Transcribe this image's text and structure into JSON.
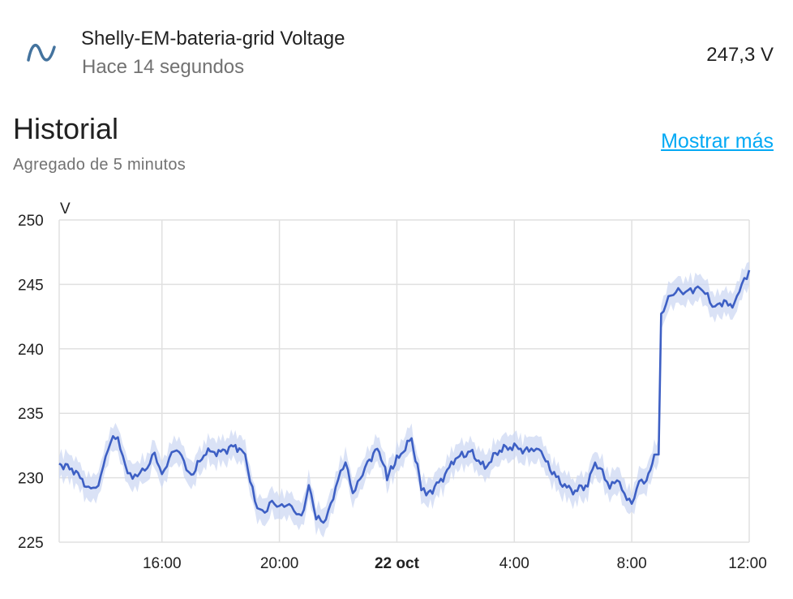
{
  "entity": {
    "name": "Shelly-EM-bateria-grid Voltage",
    "last_changed": "Hace 14 segundos",
    "state": "247,3 V",
    "icon": "sine-wave-icon",
    "icon_color": "#44739e"
  },
  "history": {
    "title": "Historial",
    "subtitle": "Agregado de 5 minutos",
    "show_more": "Mostrar más"
  },
  "colors": {
    "line": "#3d5fc4",
    "band": "#cdd8f3",
    "grid": "#e0e0e0",
    "link": "#03a9f4"
  },
  "chart_data": {
    "type": "line",
    "title": "",
    "ylabel": "V",
    "xlabel": "",
    "ylim": [
      225,
      250
    ],
    "yticks": [
      225,
      230,
      235,
      240,
      245,
      250
    ],
    "x_start": "21 oct 12:30",
    "x_end": "22 oct 12:00",
    "xticks": [
      {
        "label": "16:00",
        "bold": false
      },
      {
        "label": "20:00",
        "bold": false
      },
      {
        "label": "22 oct",
        "bold": true
      },
      {
        "label": "4:00",
        "bold": false
      },
      {
        "label": "8:00",
        "bold": false
      },
      {
        "label": "12:00",
        "bold": false
      }
    ],
    "grid": true,
    "series": [
      {
        "name": "",
        "interval": "5 min",
        "points": [
          [
            "12:30",
            231.1
          ],
          [
            "13:00",
            230.6
          ],
          [
            "13:30",
            229.2
          ],
          [
            "13:45",
            229.0
          ],
          [
            "14:00",
            231.0
          ],
          [
            "14:15",
            232.8
          ],
          [
            "14:30",
            233.1
          ],
          [
            "14:45",
            231.0
          ],
          [
            "15:00",
            229.8
          ],
          [
            "15:15",
            230.4
          ],
          [
            "15:30",
            231.0
          ],
          [
            "15:45",
            231.8
          ],
          [
            "16:00",
            230.0
          ],
          [
            "16:15",
            231.8
          ],
          [
            "16:30",
            232.3
          ],
          [
            "16:45",
            231.0
          ],
          [
            "17:00",
            230.2
          ],
          [
            "17:30",
            232.0
          ],
          [
            "18:00",
            232.0
          ],
          [
            "18:30",
            232.5
          ],
          [
            "18:50",
            231.8
          ],
          [
            "19:00",
            229.6
          ],
          [
            "19:15",
            227.8
          ],
          [
            "19:30",
            227.4
          ],
          [
            "19:45",
            227.9
          ],
          [
            "20:00",
            227.8
          ],
          [
            "20:15",
            228.2
          ],
          [
            "20:30",
            227.3
          ],
          [
            "20:45",
            226.8
          ],
          [
            "21:00",
            229.6
          ],
          [
            "21:15",
            226.9
          ],
          [
            "21:30",
            226.4
          ],
          [
            "21:45",
            228.0
          ],
          [
            "22:00",
            229.8
          ],
          [
            "22:15",
            231.2
          ],
          [
            "22:30",
            229.0
          ],
          [
            "22:45",
            229.8
          ],
          [
            "23:00",
            231.0
          ],
          [
            "23:20",
            232.5
          ],
          [
            "23:40",
            230.0
          ],
          [
            "00:00",
            231.4
          ],
          [
            "00:30",
            233.0
          ],
          [
            "00:50",
            229.3
          ],
          [
            "01:00",
            228.6
          ],
          [
            "01:30",
            229.8
          ],
          [
            "02:00",
            231.5
          ],
          [
            "02:30",
            232.0
          ],
          [
            "03:00",
            230.8
          ],
          [
            "03:30",
            232.2
          ],
          [
            "04:00",
            232.4
          ],
          [
            "04:30",
            232.0
          ],
          [
            "04:45",
            232.6
          ],
          [
            "05:00",
            231.5
          ],
          [
            "05:30",
            229.8
          ],
          [
            "06:00",
            228.9
          ],
          [
            "06:30",
            229.5
          ],
          [
            "06:45",
            231.0
          ],
          [
            "07:00",
            230.6
          ],
          [
            "07:15",
            229.2
          ],
          [
            "07:30",
            229.8
          ],
          [
            "07:45",
            228.9
          ],
          [
            "08:00",
            227.9
          ],
          [
            "08:15",
            229.5
          ],
          [
            "08:30",
            230.0
          ],
          [
            "08:50",
            231.8
          ],
          [
            "09:00",
            242.4
          ],
          [
            "09:15",
            244.0
          ],
          [
            "09:30",
            244.7
          ],
          [
            "09:45",
            244.2
          ],
          [
            "10:00",
            244.5
          ],
          [
            "10:15",
            244.9
          ],
          [
            "10:30",
            244.3
          ],
          [
            "10:45",
            243.3
          ],
          [
            "11:00",
            243.6
          ],
          [
            "11:30",
            243.4
          ],
          [
            "11:45",
            245.0
          ],
          [
            "12:00",
            246.1
          ]
        ]
      }
    ]
  }
}
